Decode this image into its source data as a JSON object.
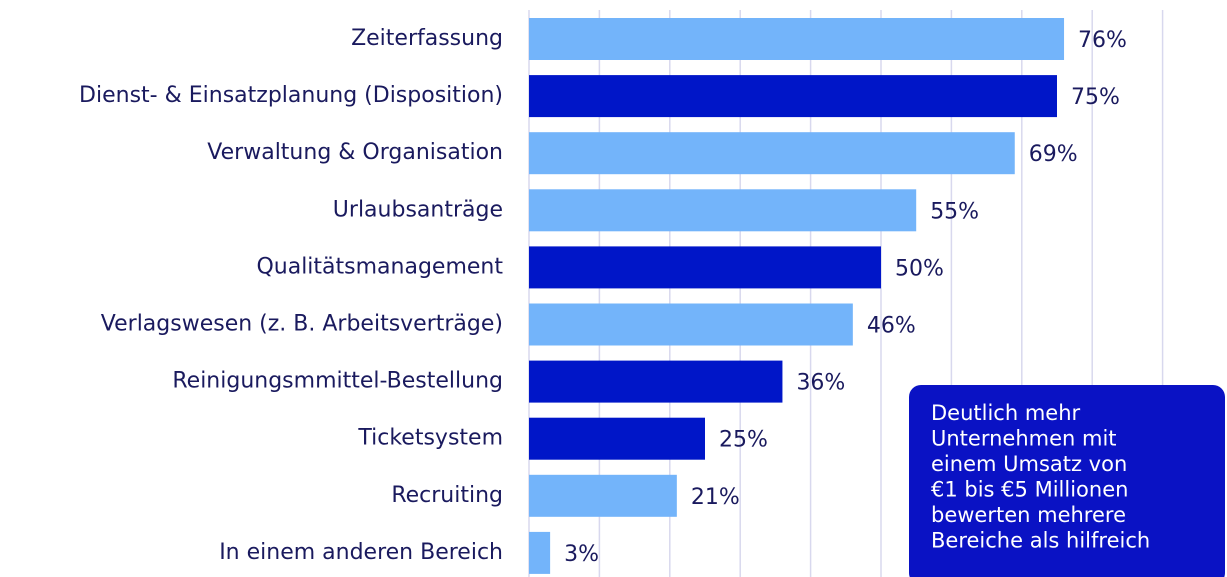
{
  "chart_data": {
    "type": "hbar",
    "categories": [
      "Zeiterfassung",
      "Dienst- & Einsatzplanung (Disposition)",
      "Verwaltung & Organisation",
      "Urlaubsanträge",
      "Qualitätsmanagement",
      "Verlagswesen (z. B. Arbeitsverträge)",
      "Reinigungsmmittel-Bestellung",
      "Ticketsystem",
      "Recruiting",
      "In einem anderen Bereich"
    ],
    "values": [
      76,
      75,
      69,
      55,
      50,
      46,
      36,
      25,
      21,
      3
    ],
    "value_labels": [
      "76%",
      "75%",
      "69%",
      "55%",
      "50%",
      "46%",
      "36%",
      "25%",
      "21%",
      "3%"
    ],
    "colors": [
      "#73b4fa",
      "#0016c8",
      "#73b4fa",
      "#73b4fa",
      "#0016c8",
      "#73b4fa",
      "#0016c8",
      "#0016c8",
      "#73b4fa",
      "#73b4fa"
    ],
    "xlim": [
      0,
      90
    ],
    "xticks": [
      0,
      10,
      20,
      30,
      40,
      50,
      60,
      70,
      80,
      90
    ],
    "grid": true,
    "annotation": [
      "Deutlich mehr",
      "Unternehmen mit",
      "einem Umsatz von",
      "€1 bis €5 Millionen",
      "bewerten mehrere",
      "Bereiche als hilfreich"
    ],
    "annotation_color": "#0a12c4"
  }
}
